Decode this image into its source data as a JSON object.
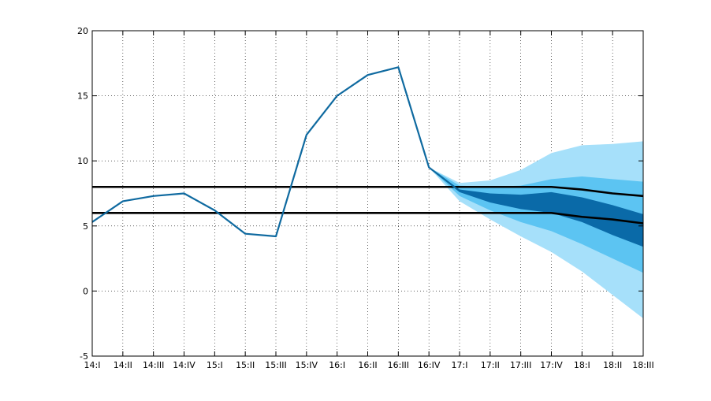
{
  "chart_data": {
    "type": "line",
    "categories": [
      "14:I",
      "14:II",
      "14:III",
      "14:IV",
      "15:I",
      "15:II",
      "15:III",
      "15:IV",
      "16:I",
      "16:II",
      "16:III",
      "16:IV",
      "17:I",
      "17:II",
      "17:III",
      "17:IV",
      "18:I",
      "18:II",
      "18:III"
    ],
    "ylim": [
      -5,
      20
    ],
    "yticks": [
      -5,
      0,
      5,
      10,
      15,
      20
    ],
    "grid": true,
    "series": [
      {
        "values": [
          5.3,
          6.9,
          7.3,
          7.5,
          6.2,
          4.4,
          4.2,
          12.0,
          15.0,
          16.6,
          17.2,
          9.5,
          7.7,
          null,
          null,
          null,
          null,
          null,
          null
        ],
        "color": "#0f6aa0"
      }
    ],
    "reference_lines": [
      {
        "values": [
          8.0,
          8.0,
          8.0,
          8.0,
          8.0,
          8.0,
          8.0,
          8.0,
          8.0,
          8.0,
          8.0,
          8.0,
          8.0,
          8.0,
          8.0,
          8.0,
          7.8,
          7.5,
          7.3
        ],
        "color": "#000000"
      },
      {
        "values": [
          6.0,
          6.0,
          6.0,
          6.0,
          6.0,
          6.0,
          6.0,
          6.0,
          6.0,
          6.0,
          6.0,
          6.0,
          6.0,
          6.0,
          6.0,
          6.0,
          5.7,
          5.5,
          5.2
        ],
        "color": "#000000"
      }
    ],
    "fan": {
      "x_start_index": 11,
      "bands": [
        {
          "color": "#a6e0fa",
          "lower": [
            9.5,
            6.9,
            5.5,
            4.2,
            3.0,
            1.5,
            -0.3,
            -2.1
          ],
          "upper": [
            9.5,
            8.3,
            8.5,
            9.3,
            10.6,
            11.2,
            11.3,
            11.5
          ]
        },
        {
          "color": "#5cc4f2",
          "lower": [
            9.5,
            7.3,
            6.2,
            5.3,
            4.6,
            3.6,
            2.5,
            1.4
          ],
          "upper": [
            9.5,
            8.1,
            8.0,
            8.1,
            8.6,
            8.8,
            8.6,
            8.4
          ]
        },
        {
          "color": "#0a6aa8",
          "lower": [
            9.5,
            7.6,
            6.8,
            6.3,
            6.0,
            5.3,
            4.3,
            3.4
          ],
          "upper": [
            9.5,
            7.8,
            7.5,
            7.4,
            7.6,
            7.2,
            6.6,
            5.9
          ]
        }
      ],
      "median": [
        9.5,
        7.7,
        7.1,
        6.8,
        6.8,
        6.2,
        5.4,
        4.6
      ]
    }
  }
}
